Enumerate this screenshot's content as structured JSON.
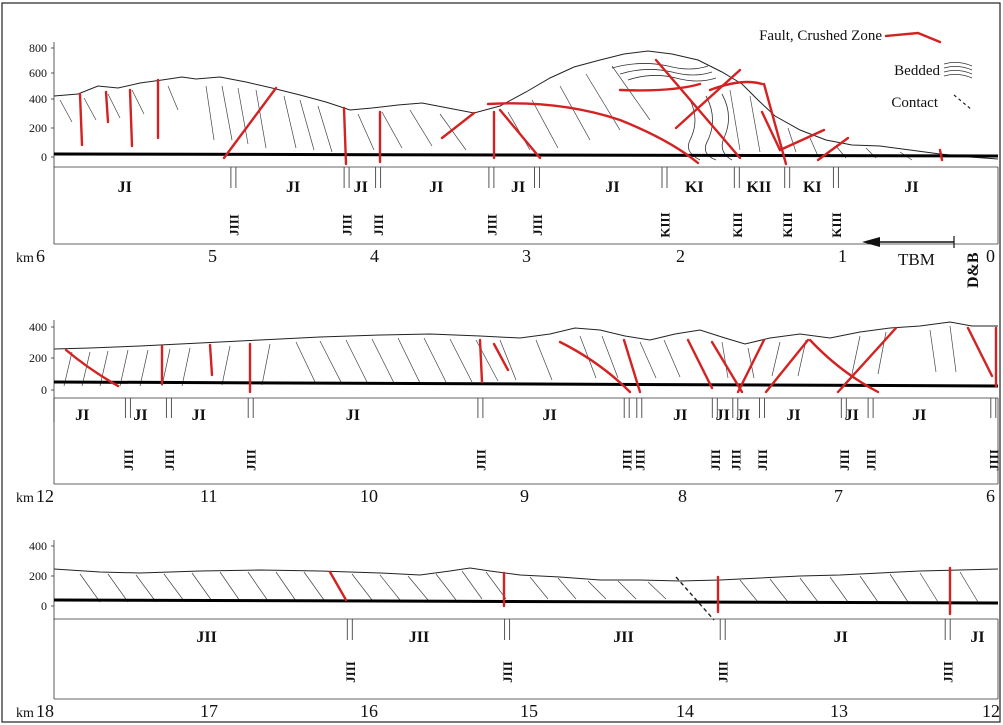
{
  "legend": {
    "fault_label": "Fault, Crushed Zone",
    "bedded_label": "Bedded",
    "contact_label": "Contact",
    "colors": {
      "fault": "#d42222",
      "tunnel": "#000000"
    }
  },
  "tbm_label": "TBM",
  "db_label": "D&B",
  "km_prefix": "km",
  "panels": [
    {
      "elevation_ticks": [
        "800",
        "600",
        "400",
        "200",
        "0"
      ],
      "elevation_values": [
        800,
        600,
        400,
        200,
        0
      ],
      "km_labels": [
        "6",
        "5",
        "4",
        "3",
        "2",
        "1",
        "0"
      ],
      "km_range": [
        6,
        0
      ],
      "units_top": [
        {
          "label": "JI",
          "km": 5.55
        },
        {
          "label": "JI",
          "km": 4.48
        },
        {
          "label": "JI",
          "km": 4.05
        },
        {
          "label": "JI",
          "km": 3.57
        },
        {
          "label": "JI",
          "km": 3.05
        },
        {
          "label": "JI",
          "km": 2.45
        },
        {
          "label": "KI",
          "km": 1.93
        },
        {
          "label": "KII",
          "km": 1.52
        },
        {
          "label": "KI",
          "km": 1.18
        },
        {
          "label": "JI",
          "km": 0.55
        }
      ],
      "units_bottom": [
        {
          "label": "JIII",
          "km": 4.86
        },
        {
          "label": "JIII",
          "km": 4.14
        },
        {
          "label": "JIII",
          "km": 3.94
        },
        {
          "label": "JIII",
          "km": 3.22
        },
        {
          "label": "JIII",
          "km": 2.93
        },
        {
          "label": "KIII",
          "km": 2.12
        },
        {
          "label": "KIII",
          "km": 1.66
        },
        {
          "label": "KIII",
          "km": 1.34
        },
        {
          "label": "KIII",
          "km": 1.03
        }
      ]
    },
    {
      "elevation_ticks": [
        "400",
        "200",
        "0"
      ],
      "elevation_values": [
        400,
        200,
        0
      ],
      "km_labels": [
        "12",
        "11",
        "10",
        "9",
        "8",
        "7",
        "6"
      ],
      "km_range": [
        12,
        6
      ],
      "units_top": [
        {
          "label": "JI",
          "km": 11.82
        },
        {
          "label": "JI",
          "km": 11.45
        },
        {
          "label": "JI",
          "km": 11.08
        },
        {
          "label": "JI",
          "km": 10.1
        },
        {
          "label": "JI",
          "km": 8.85
        },
        {
          "label": "JI",
          "km": 8.02
        },
        {
          "label": "JI",
          "km": 7.75
        },
        {
          "label": "JI",
          "km": 7.62
        },
        {
          "label": "JI",
          "km": 7.3
        },
        {
          "label": "JI",
          "km": 6.93
        },
        {
          "label": "JI",
          "km": 6.5
        }
      ],
      "units_bottom": [
        {
          "label": "JIII",
          "km": 11.53
        },
        {
          "label": "JIII",
          "km": 11.27
        },
        {
          "label": "JIII",
          "km": 10.75
        },
        {
          "label": "JIII",
          "km": 9.29
        },
        {
          "label": "JIII",
          "km": 8.36
        },
        {
          "label": "JIII",
          "km": 8.28
        },
        {
          "label": "JIII",
          "km": 7.8
        },
        {
          "label": "JIII",
          "km": 7.67
        },
        {
          "label": "JIII",
          "km": 7.5
        },
        {
          "label": "JIII",
          "km": 6.98
        },
        {
          "label": "JIII",
          "km": 6.81
        },
        {
          "label": "JIII",
          "km": 6.03
        }
      ]
    },
    {
      "elevation_ticks": [
        "400",
        "200",
        "0"
      ],
      "elevation_values": [
        400,
        200,
        0
      ],
      "km_labels": [
        "18",
        "17",
        "16",
        "15",
        "14",
        "13",
        "12"
      ],
      "km_range": [
        18,
        12
      ],
      "units_top": [
        {
          "label": "JII",
          "km": 17.03
        },
        {
          "label": "JII",
          "km": 15.68
        },
        {
          "label": "JII",
          "km": 14.38
        },
        {
          "label": "JI",
          "km": 13.0
        },
        {
          "label": "JI",
          "km": 12.13
        }
      ],
      "units_bottom": [
        {
          "label": "JIII",
          "km": 16.12
        },
        {
          "label": "JIII",
          "km": 15.12
        },
        {
          "label": "JIII",
          "km": 13.75
        },
        {
          "label": "JIII",
          "km": 12.32
        }
      ]
    }
  ]
}
